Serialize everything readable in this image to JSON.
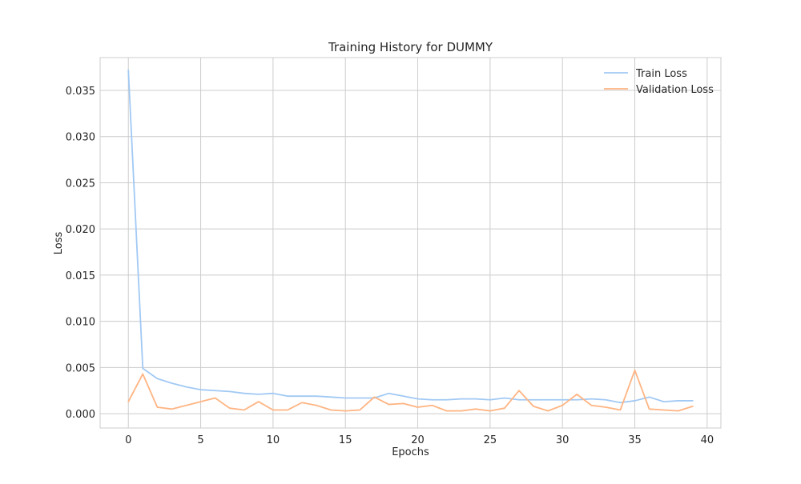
{
  "chart_data": {
    "type": "line",
    "title": "Training History for DUMMY",
    "xlabel": "Epochs",
    "ylabel": "Loss",
    "xlim": [
      -1.95,
      40.95
    ],
    "ylim": [
      -0.00155,
      0.03855
    ],
    "xticks": [
      0,
      5,
      10,
      15,
      20,
      25,
      30,
      35,
      40
    ],
    "xtick_labels": [
      "0",
      "5",
      "10",
      "15",
      "20",
      "25",
      "30",
      "35",
      "40"
    ],
    "yticks": [
      0.0,
      0.005,
      0.01,
      0.015,
      0.02,
      0.025,
      0.03,
      0.035
    ],
    "ytick_labels": [
      "0.000",
      "0.005",
      "0.010",
      "0.015",
      "0.020",
      "0.025",
      "0.030",
      "0.035"
    ],
    "grid": true,
    "legend_position": "top-right",
    "x": [
      0,
      1,
      2,
      3,
      4,
      5,
      6,
      7,
      8,
      9,
      10,
      11,
      12,
      13,
      14,
      15,
      16,
      17,
      18,
      19,
      20,
      21,
      22,
      23,
      24,
      25,
      26,
      27,
      28,
      29,
      30,
      31,
      32,
      33,
      34,
      35,
      36,
      37,
      38,
      39
    ],
    "series": [
      {
        "name": "Train Loss",
        "color": "#a1c9f4",
        "values": [
          0.0372,
          0.0049,
          0.0038,
          0.0033,
          0.0029,
          0.0026,
          0.0025,
          0.0024,
          0.0022,
          0.0021,
          0.0022,
          0.0019,
          0.0019,
          0.0019,
          0.0018,
          0.0017,
          0.0017,
          0.0017,
          0.0022,
          0.0019,
          0.0016,
          0.0015,
          0.0015,
          0.0016,
          0.0016,
          0.0015,
          0.0017,
          0.0015,
          0.0015,
          0.0015,
          0.0015,
          0.0015,
          0.0016,
          0.0015,
          0.0012,
          0.0014,
          0.0018,
          0.0013,
          0.0014,
          0.0014
        ]
      },
      {
        "name": "Validation Loss",
        "color": "#ffb482",
        "values": [
          0.0013,
          0.0043,
          0.0007,
          0.0005,
          0.0009,
          0.0013,
          0.0017,
          0.0006,
          0.0004,
          0.0013,
          0.0004,
          0.0004,
          0.0012,
          0.0009,
          0.0004,
          0.0003,
          0.0004,
          0.0018,
          0.001,
          0.0011,
          0.0007,
          0.0009,
          0.0003,
          0.0003,
          0.0005,
          0.0003,
          0.0006,
          0.0025,
          0.0008,
          0.0003,
          0.0009,
          0.0021,
          0.0009,
          0.0007,
          0.0004,
          0.0047,
          0.0005,
          0.0004,
          0.0003,
          0.0008
        ]
      }
    ]
  }
}
